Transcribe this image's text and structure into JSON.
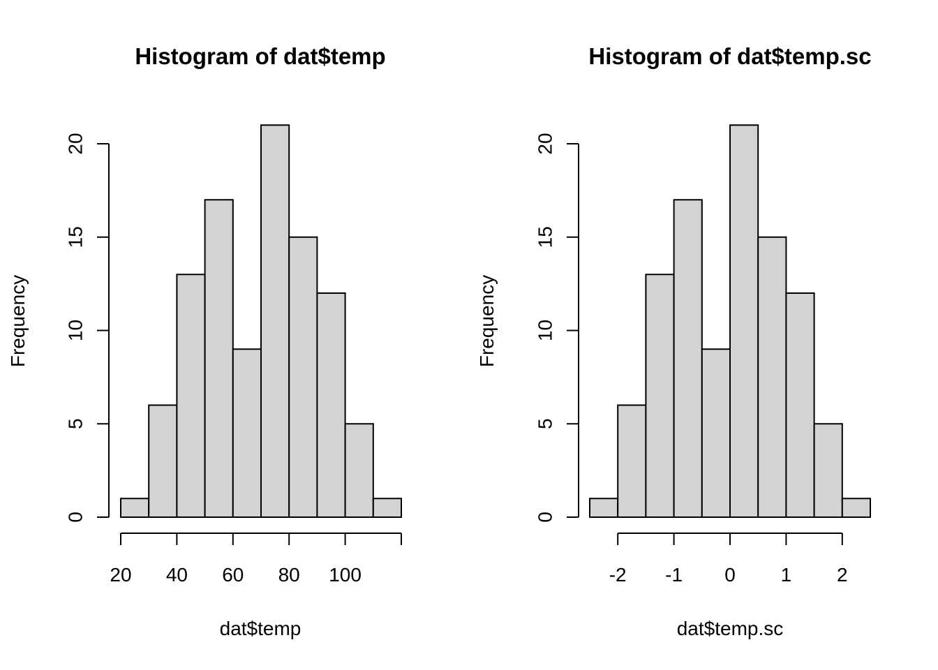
{
  "chart_data": [
    {
      "type": "bar",
      "title": "Histogram of dat$temp",
      "xlabel": "dat$temp",
      "ylabel": "Frequency",
      "bin_edges": [
        20,
        30,
        40,
        50,
        60,
        70,
        80,
        90,
        100,
        110,
        120
      ],
      "values": [
        1,
        6,
        13,
        17,
        9,
        21,
        15,
        12,
        5,
        1
      ],
      "xlim": [
        20,
        120
      ],
      "ylim": [
        0,
        21
      ],
      "x_ticks": [
        20,
        40,
        60,
        80,
        100,
        120
      ],
      "x_tick_labels": [
        "20",
        "40",
        "60",
        "80",
        "100",
        ""
      ],
      "y_ticks": [
        0,
        5,
        10,
        15,
        20
      ],
      "y_tick_labels": [
        "0",
        "5",
        "10",
        "15",
        "20"
      ],
      "bar_fill": "#d3d3d3",
      "grid": false
    },
    {
      "type": "bar",
      "title": "Histogram of dat$temp.sc",
      "xlabel": "dat$temp.sc",
      "ylabel": "Frequency",
      "bin_edges": [
        -2.5,
        -2,
        -1.5,
        -1,
        -0.5,
        0,
        0.5,
        1,
        1.5,
        2,
        2.5
      ],
      "values": [
        1,
        6,
        13,
        17,
        9,
        21,
        15,
        12,
        5,
        1
      ],
      "xlim": [
        -2.5,
        2.5
      ],
      "ylim": [
        0,
        21
      ],
      "x_ticks": [
        -2,
        -1,
        0,
        1,
        2
      ],
      "x_tick_labels": [
        "-2",
        "-1",
        "0",
        "1",
        "2"
      ],
      "y_ticks": [
        0,
        5,
        10,
        15,
        20
      ],
      "y_tick_labels": [
        "0",
        "5",
        "10",
        "15",
        "20"
      ],
      "bar_fill": "#d3d3d3",
      "grid": false
    }
  ]
}
